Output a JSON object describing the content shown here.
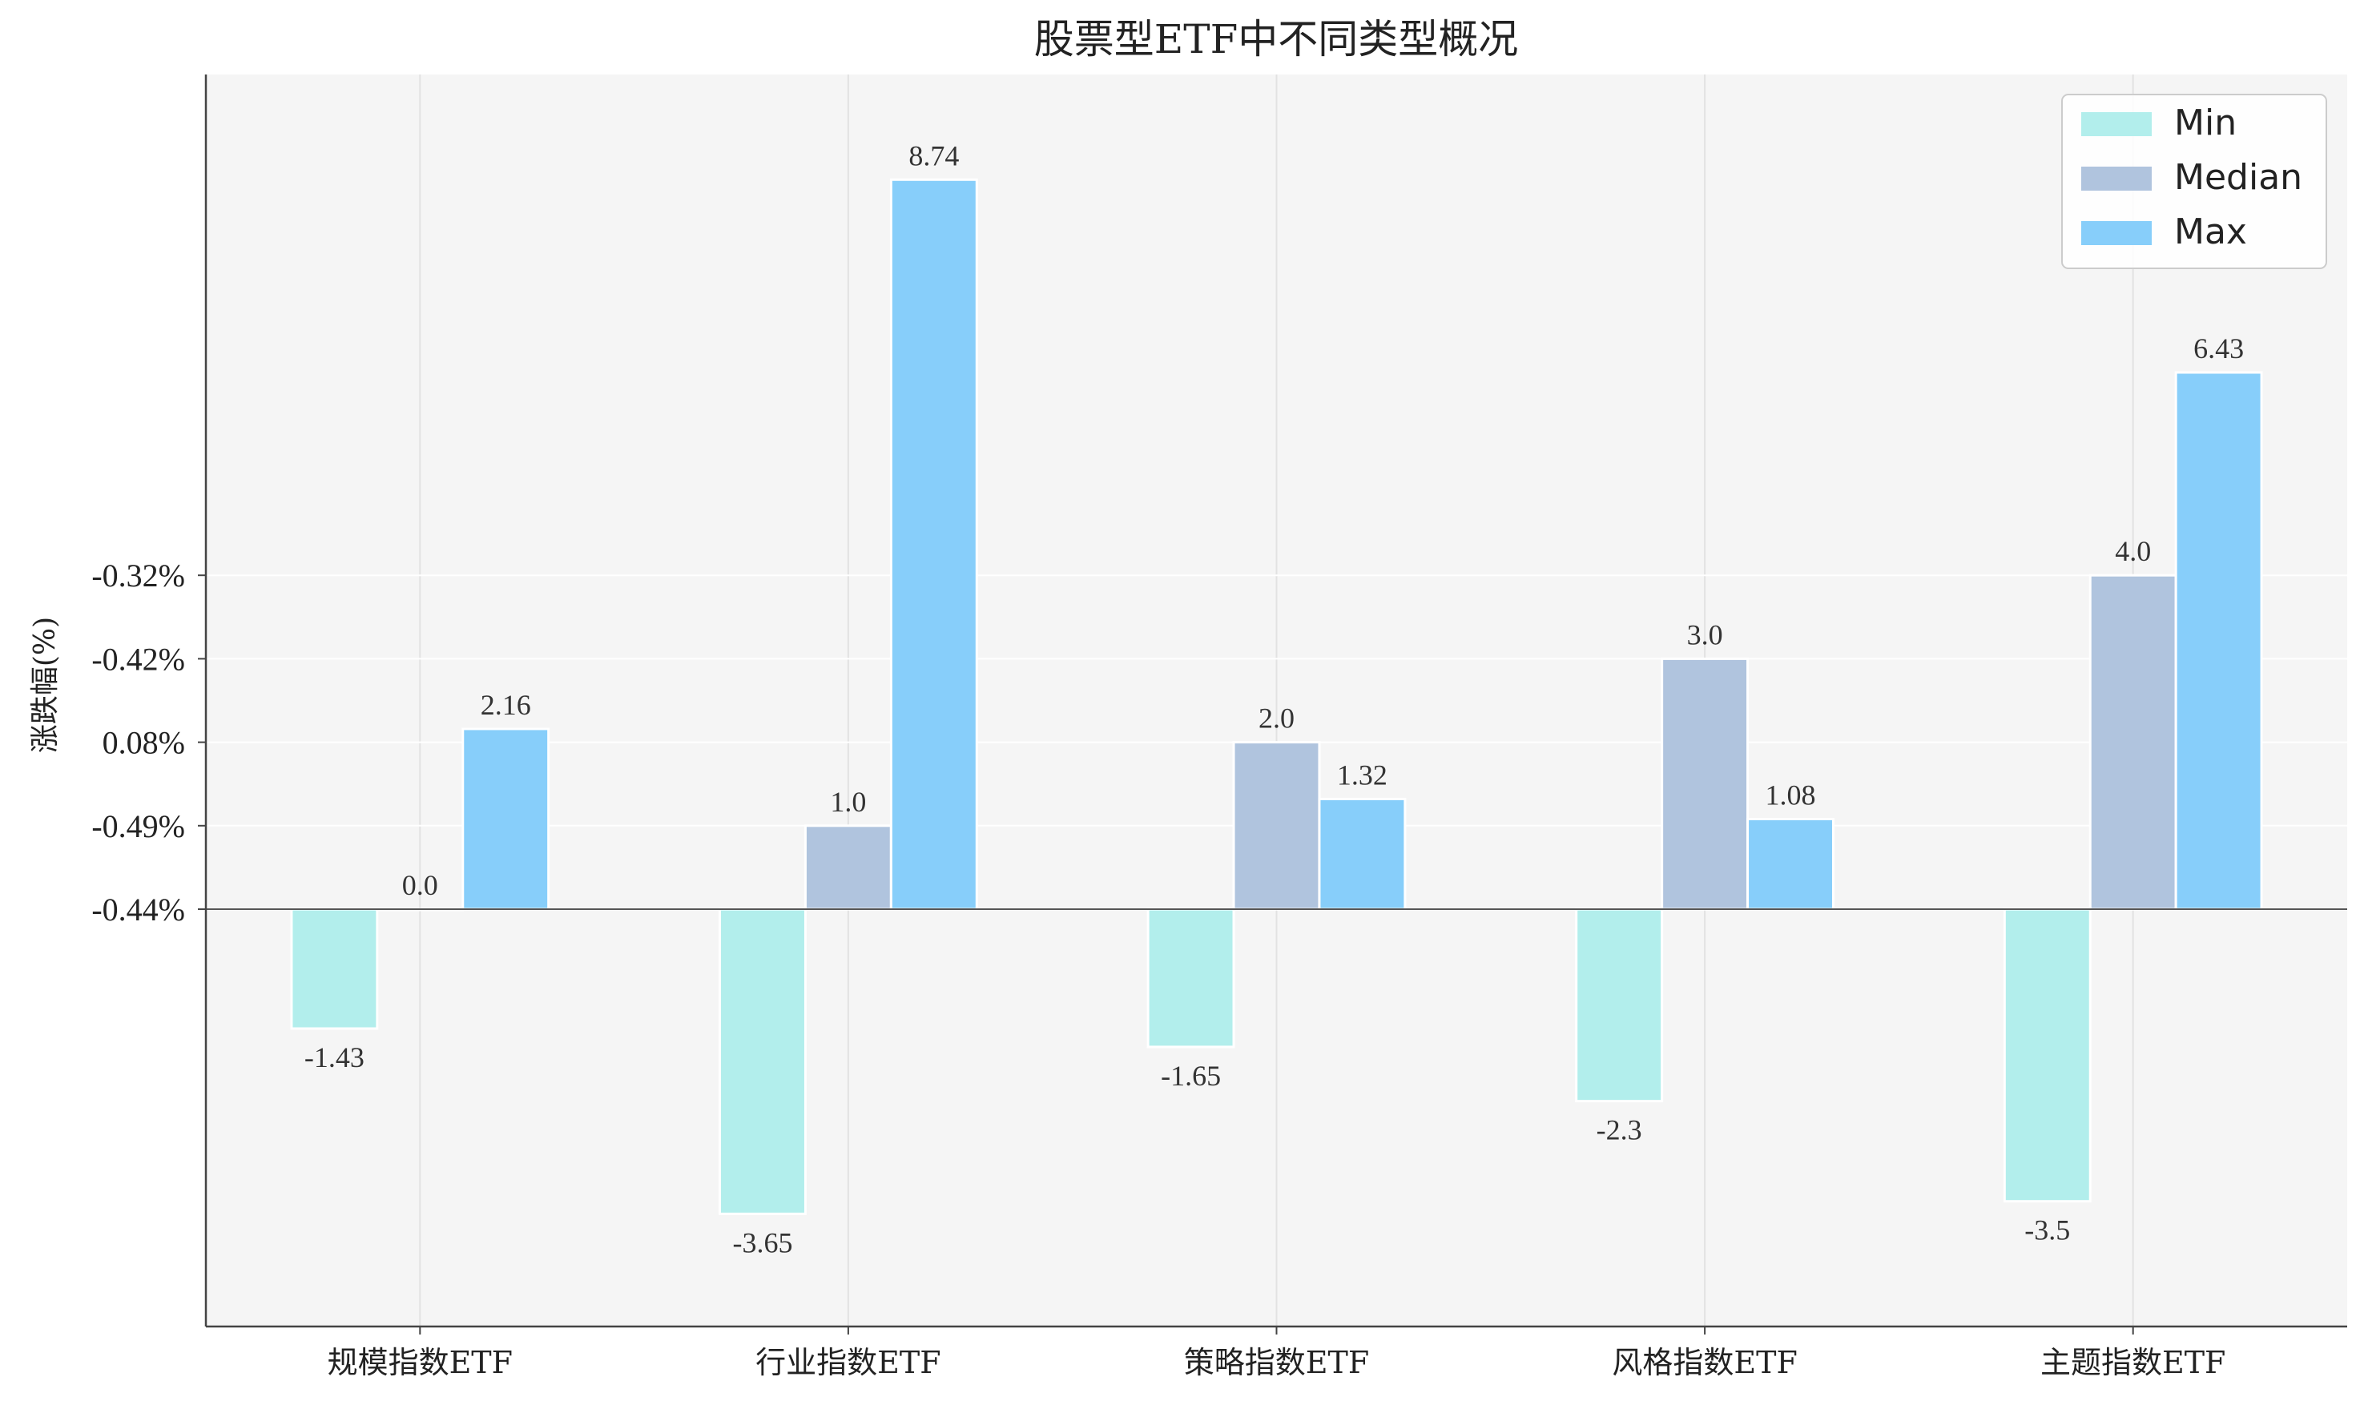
{
  "chart_data": {
    "type": "bar",
    "title": "股票型ETF中不同类型概况",
    "ylabel": "涨跌幅(%)",
    "xlabel": "",
    "categories": [
      "规模指数ETF",
      "行业指数ETF",
      "策略指数ETF",
      "风格指数ETF",
      "主题指数ETF"
    ],
    "series": [
      {
        "name": "Min",
        "values": [
          -1.43,
          -3.65,
          -1.65,
          -2.3,
          -3.5
        ],
        "color": "#b2eeec"
      },
      {
        "name": "Median",
        "values": [
          0.0,
          1.0,
          2.0,
          3.0,
          4.0
        ],
        "color": "#b0c4de"
      },
      {
        "name": "Max",
        "values": [
          2.16,
          8.74,
          1.32,
          1.08,
          6.43
        ],
        "color": "#87cefa"
      }
    ],
    "data_labels": [
      [
        "-1.43",
        "-3.65",
        "-1.65",
        "-2.3",
        "-3.5"
      ],
      [
        "0.0",
        "1.0",
        "2.0",
        "3.0",
        "4.0"
      ],
      [
        "2.16",
        "8.74",
        "1.32",
        "1.08",
        "6.43"
      ]
    ],
    "yticks": [
      {
        "value": 0,
        "label": "-0.44%"
      },
      {
        "value": 1,
        "label": "-0.49%"
      },
      {
        "value": 2,
        "label": "0.08%"
      },
      {
        "value": 3,
        "label": "-0.42%"
      },
      {
        "value": 4,
        "label": "-0.32%"
      }
    ],
    "ylim": [
      -5.0,
      10.0
    ],
    "grid": true,
    "legend_position": "top-right"
  }
}
